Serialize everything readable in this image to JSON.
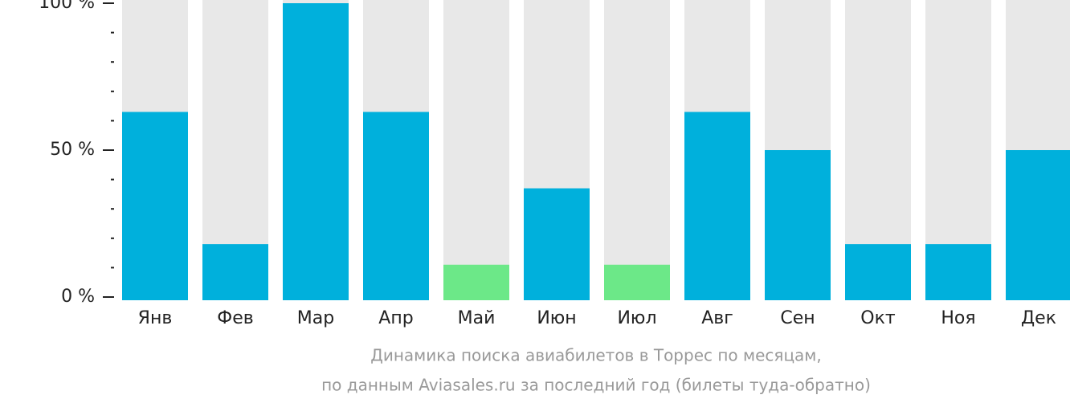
{
  "chart_data": {
    "type": "bar",
    "title": "Динамика поиска авиабилетов в Торрес по месяцам,",
    "subtitle": "по данным Aviasales.ru за последний год (билеты туда-обратно)",
    "categories": [
      "Янв",
      "Фев",
      "Мар",
      "Апр",
      "Май",
      "Июн",
      "Июл",
      "Авг",
      "Сен",
      "Окт",
      "Ноя",
      "Дек"
    ],
    "values": [
      63,
      18,
      100,
      63,
      11,
      37,
      11,
      63,
      50,
      18,
      18,
      50
    ],
    "colors": [
      "#00b0dc",
      "#00b0dc",
      "#00b0dc",
      "#00b0dc",
      "#6ce888",
      "#00b0dc",
      "#6ce888",
      "#00b0dc",
      "#00b0dc",
      "#00b0dc",
      "#00b0dc",
      "#00b0dc"
    ],
    "ylim": [
      0,
      100
    ],
    "yticks": [
      {
        "value": 0,
        "label": "0 %"
      },
      {
        "value": 50,
        "label": "50 %"
      },
      {
        "value": 100,
        "label": "100 %"
      }
    ],
    "yminorticks": [
      10,
      20,
      30,
      40,
      60,
      70,
      80,
      90
    ]
  }
}
